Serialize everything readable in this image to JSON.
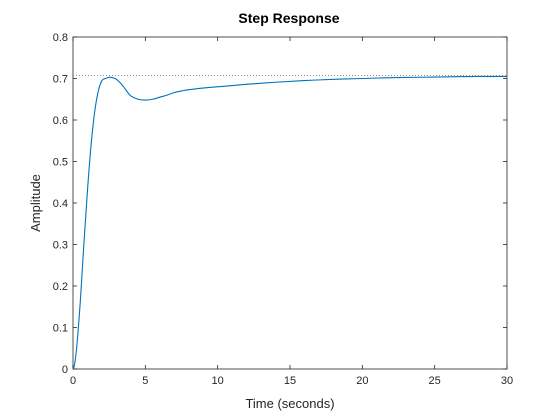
{
  "chart_data": {
    "type": "line",
    "title": "Step Response",
    "xlabel": "Time (seconds)",
    "ylabel": "Amplitude",
    "xlim": [
      0,
      30
    ],
    "ylim": [
      0,
      0.8
    ],
    "xticks": [
      "0",
      "5",
      "10",
      "15",
      "20",
      "25",
      "30"
    ],
    "yticks": [
      "0",
      "0.1",
      "0.2",
      "0.3",
      "0.4",
      "0.5",
      "0.6",
      "0.7",
      "0.8"
    ],
    "grid": false,
    "reference_line": {
      "y": 0.707,
      "style": "dotted",
      "color": "#808080"
    },
    "series": [
      {
        "color": "#0072bd",
        "x": [
          0,
          0.1,
          0.25,
          0.5,
          0.75,
          1.0,
          1.25,
          1.5,
          1.75,
          2.0,
          2.25,
          2.5,
          2.75,
          3.0,
          3.25,
          3.5,
          3.75,
          4.0,
          4.5,
          5.0,
          5.5,
          6.0,
          6.5,
          7.0,
          7.5,
          8.0,
          9.0,
          10.0,
          11.0,
          12.0,
          14.0,
          16.0,
          18.0,
          20.0,
          22.0,
          24.0,
          26.0,
          28.0,
          30.0
        ],
        "y": [
          0,
          0.01,
          0.05,
          0.16,
          0.3,
          0.43,
          0.54,
          0.62,
          0.67,
          0.695,
          0.7,
          0.703,
          0.702,
          0.698,
          0.69,
          0.68,
          0.668,
          0.658,
          0.65,
          0.648,
          0.65,
          0.655,
          0.66,
          0.666,
          0.67,
          0.673,
          0.677,
          0.68,
          0.683,
          0.686,
          0.691,
          0.695,
          0.698,
          0.7,
          0.702,
          0.703,
          0.704,
          0.705,
          0.705
        ]
      }
    ]
  }
}
